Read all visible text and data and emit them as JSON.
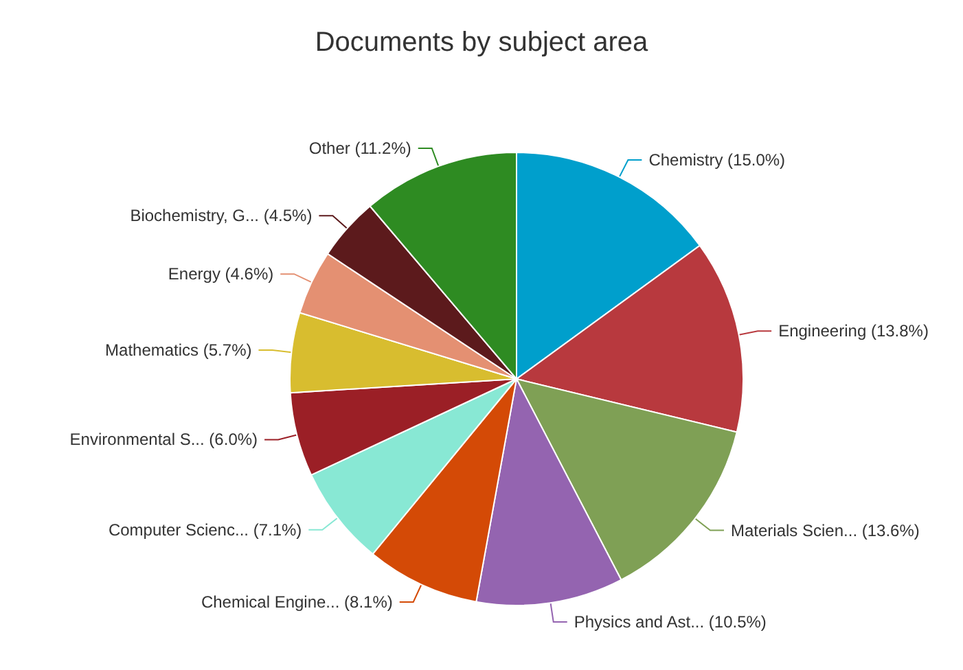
{
  "chart_data": {
    "type": "pie",
    "title": "Documents by subject area",
    "categories": [
      "Chemistry",
      "Engineering",
      "Materials Scien...",
      "Physics and Ast...",
      "Chemical Engine...",
      "Computer Scienc...",
      "Environmental S...",
      "Mathematics",
      "Energy",
      "Biochemistry, G...",
      "Other"
    ],
    "values": [
      15.0,
      13.8,
      13.6,
      10.5,
      8.1,
      7.1,
      6.0,
      5.7,
      4.6,
      4.5,
      11.2
    ],
    "value_labels": [
      "(15.0%)",
      "(13.8%)",
      "(13.6%)",
      "(10.5%)",
      "(8.1%)",
      "(7.1%)",
      "(6.0%)",
      "(5.7%)",
      "(4.6%)",
      "(4.5%)",
      "(11.2%)"
    ],
    "colors": [
      "#009fcc",
      "#b8393e",
      "#7fa055",
      "#9464b0",
      "#d44a06",
      "#88e8d4",
      "#9b1f26",
      "#d8bd2f",
      "#e49072",
      "#5c1a1c",
      "#2e8b22"
    ],
    "legend": false
  }
}
